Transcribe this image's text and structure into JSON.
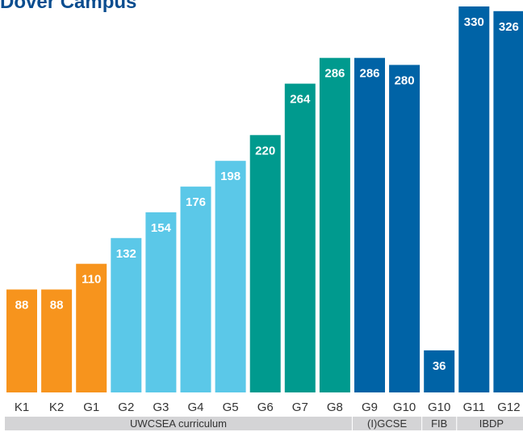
{
  "chart_data": {
    "type": "bar",
    "title": "Dover Campus",
    "categories": [
      "K1",
      "K2",
      "G1",
      "G2",
      "G3",
      "G4",
      "G5",
      "G6",
      "G7",
      "G8",
      "G9",
      "G10",
      "G10",
      "G11",
      "G12"
    ],
    "values": [
      88,
      88,
      110,
      132,
      154,
      176,
      198,
      220,
      264,
      286,
      286,
      280,
      36,
      330,
      326
    ],
    "ylim": [
      0,
      330
    ],
    "grid": false,
    "colors": [
      "#f7941d",
      "#f7941d",
      "#f7941d",
      "#5bc8e8",
      "#5bc8e8",
      "#5bc8e8",
      "#5bc8e8",
      "#009a8e",
      "#009a8e",
      "#009a8e",
      "#0063a6",
      "#0063a6",
      "#0063a6",
      "#0063a6",
      "#0063a6"
    ],
    "groups": [
      {
        "label": "UWCSEA curriculum",
        "start": 0,
        "end": 9
      },
      {
        "label": "(I)GCSE",
        "start": 10,
        "end": 11
      },
      {
        "label": "FIB",
        "start": 12,
        "end": 12
      },
      {
        "label": "IBDP",
        "start": 13,
        "end": 14
      }
    ],
    "group_band_color": "#d4d4d6"
  }
}
